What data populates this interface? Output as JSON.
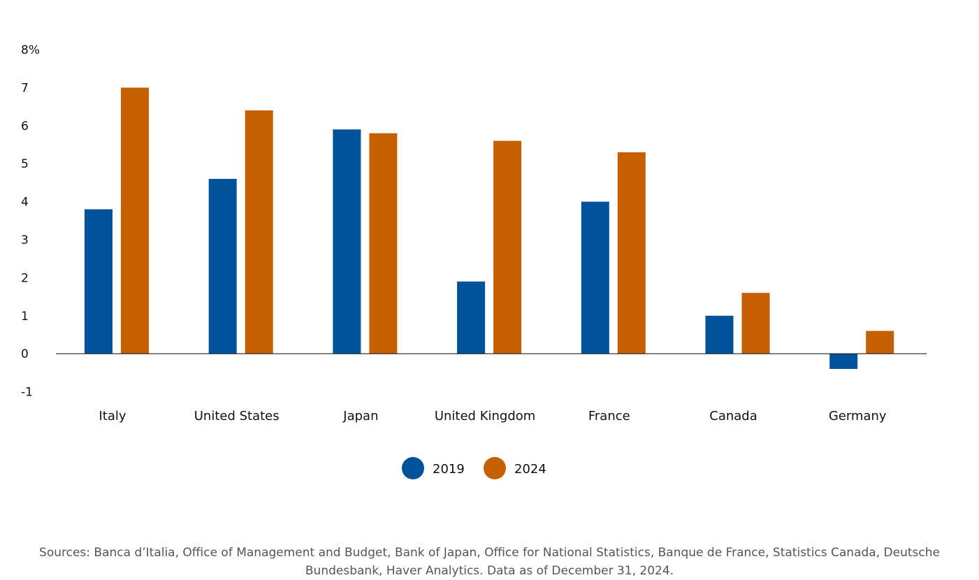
{
  "chart_data": {
    "type": "bar",
    "categories": [
      "Italy",
      "United States",
      "Japan",
      "United Kingdom",
      "France",
      "Canada",
      "Germany"
    ],
    "series": [
      {
        "name": "2019",
        "values": [
          3.8,
          4.6,
          5.9,
          1.9,
          4.0,
          1.0,
          -0.4
        ],
        "color": "#00529b"
      },
      {
        "name": "2024",
        "values": [
          7.0,
          6.4,
          5.8,
          5.6,
          5.3,
          1.6,
          0.6
        ],
        "color": "#c55f00"
      }
    ],
    "yticks": [
      "8%",
      "7",
      "6",
      "5",
      "4",
      "3",
      "2",
      "1",
      "0",
      "-1"
    ],
    "ylim": [
      -1,
      8
    ],
    "grid": false,
    "legend_position": "bottom-center",
    "title": "",
    "xlabel": "",
    "ylabel": ""
  },
  "source_note": "Sources: Banca d’Italia, Office of Management and Budget, Bank of Japan, Office for National Statistics, Banque de France, Statistics Canada, Deutsche Bundesbank, Haver Analytics. Data as of December 31, 2024."
}
